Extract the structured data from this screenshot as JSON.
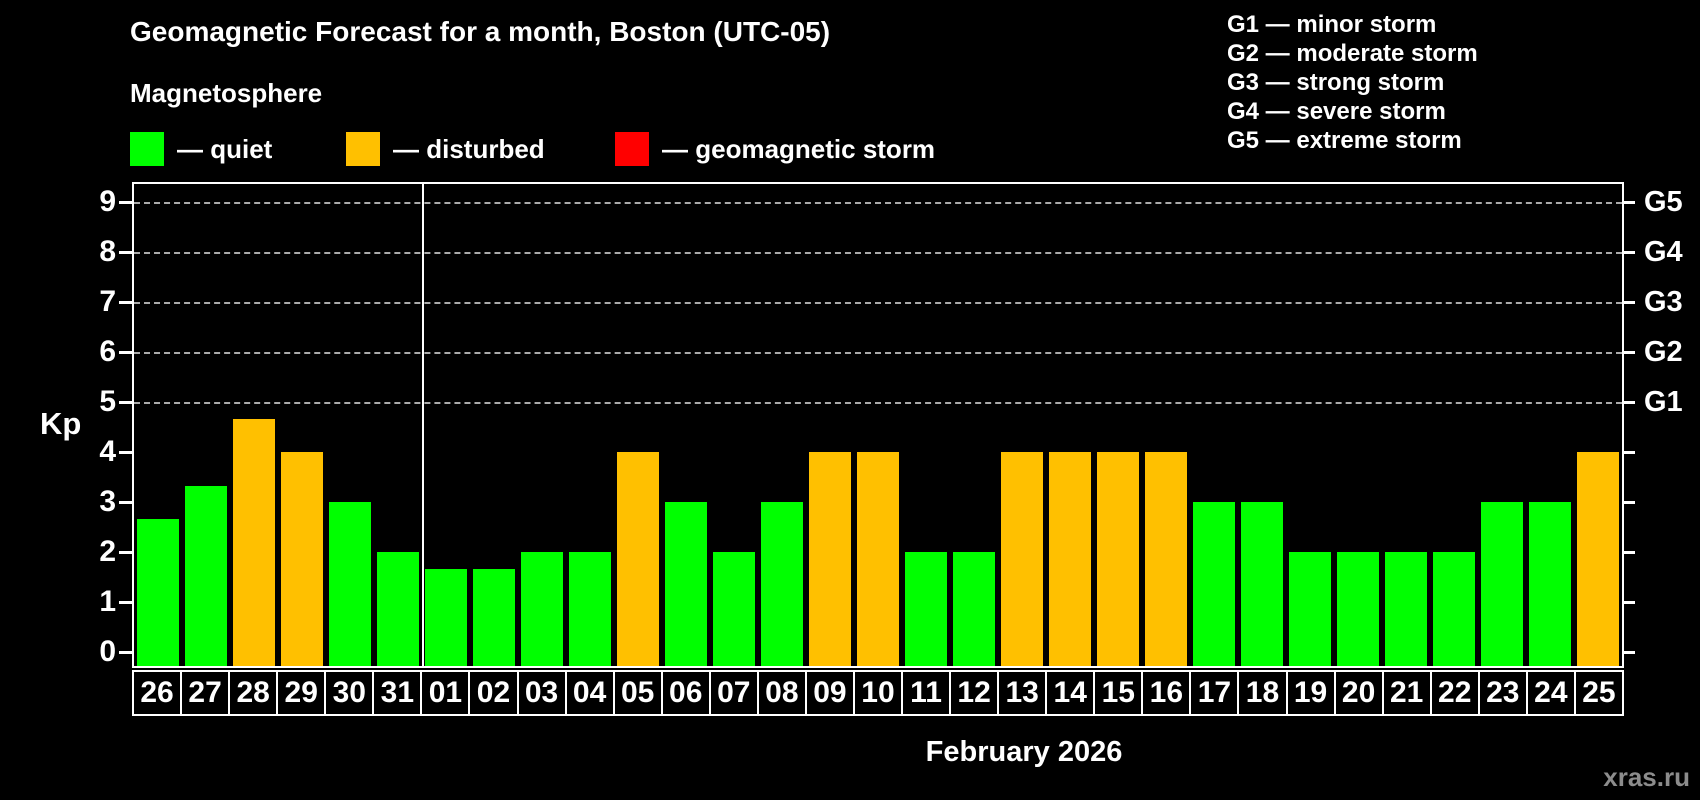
{
  "page": {
    "title": "Geomagnetic Forecast for a month, Boston (UTC-05)",
    "subtitle": "Magnetosphere",
    "kp_axis_label": "Kp",
    "month_label": "February 2026",
    "watermark": "xras.ru"
  },
  "legend": {
    "items": [
      {
        "name": "quiet",
        "label": "— quiet",
        "color": "#00ff00"
      },
      {
        "name": "disturbed",
        "label": "— disturbed",
        "color": "#ffc000"
      },
      {
        "name": "storm",
        "label": "— geomagnetic storm",
        "color": "#ff0000"
      }
    ]
  },
  "g_scale_legend": [
    "G1 — minor storm",
    "G2 — moderate storm",
    "G3 — strong storm",
    "G4 — severe storm",
    "G5 — extreme storm"
  ],
  "chart_data": {
    "type": "bar",
    "title": "Geomagnetic Forecast for a month, Boston (UTC-05)",
    "xlabel": "February 2026",
    "ylabel": "Kp",
    "ylim": [
      0,
      9.4
    ],
    "y_ticks": [
      0,
      1,
      2,
      3,
      4,
      5,
      6,
      7,
      8,
      9
    ],
    "grid": "horizontal dashed lines at Kp 5,6,7,8,9 (G1–G5 levels)",
    "right_axis_labels": [
      {
        "kp": 5,
        "label": "G1"
      },
      {
        "kp": 6,
        "label": "G2"
      },
      {
        "kp": 7,
        "label": "G3"
      },
      {
        "kp": 8,
        "label": "G4"
      },
      {
        "kp": 9,
        "label": "G5"
      }
    ],
    "legend_position": "top-left",
    "month_separator_after_index": 5,
    "categories": [
      "26",
      "27",
      "28",
      "29",
      "30",
      "31",
      "01",
      "02",
      "03",
      "04",
      "05",
      "06",
      "07",
      "08",
      "09",
      "10",
      "11",
      "12",
      "13",
      "14",
      "15",
      "16",
      "17",
      "18",
      "19",
      "20",
      "21",
      "22",
      "23",
      "24",
      "25"
    ],
    "values": [
      2.67,
      3.33,
      4.67,
      4.0,
      3.0,
      2.0,
      1.67,
      1.67,
      2.0,
      2.0,
      4.0,
      3.0,
      2.0,
      3.0,
      4.0,
      4.0,
      2.0,
      2.0,
      4.0,
      4.0,
      4.0,
      4.0,
      3.0,
      3.0,
      2.0,
      2.0,
      2.0,
      2.0,
      3.0,
      3.0,
      4.0
    ],
    "statuses": [
      "quiet",
      "quiet",
      "disturbed",
      "disturbed",
      "quiet",
      "quiet",
      "quiet",
      "quiet",
      "quiet",
      "quiet",
      "disturbed",
      "quiet",
      "quiet",
      "quiet",
      "disturbed",
      "disturbed",
      "quiet",
      "quiet",
      "disturbed",
      "disturbed",
      "disturbed",
      "disturbed",
      "quiet",
      "quiet",
      "quiet",
      "quiet",
      "quiet",
      "quiet",
      "quiet",
      "quiet",
      "disturbed"
    ],
    "colors": {
      "quiet": "#00ff00",
      "disturbed": "#ffc000",
      "storm": "#ff0000"
    }
  }
}
